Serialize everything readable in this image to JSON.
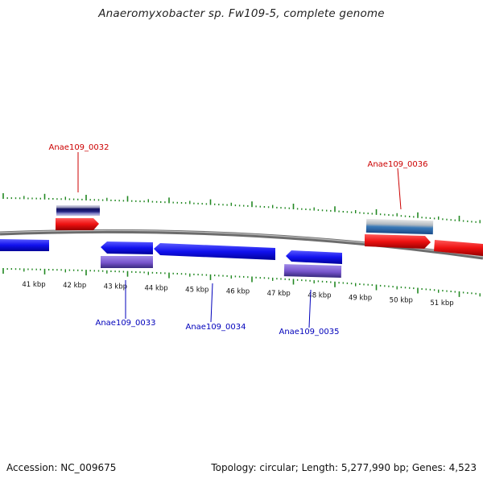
{
  "title": "Anaeromyxobacter sp. Fw109-5, complete genome",
  "footer": {
    "accession": "Accession: NC_009675",
    "summary": "Topology: circular; Length: 5,277,990 bp; Genes: 4,523"
  },
  "colors": {
    "forward_gene": "#ee1111",
    "reverse_gene": "#1111ee",
    "reverse_product": "#7755cc",
    "label_forward": "#cc0000",
    "label_reverse": "#0000bb",
    "tick": "#228822",
    "backbone": "#808080"
  },
  "scale_labels": [
    "41 kbp",
    "42 kbp",
    "43 kbp",
    "44 kbp",
    "45 kbp",
    "46 kbp",
    "47 kbp",
    "48 kbp",
    "49 kbp",
    "50 kbp",
    "51 kbp"
  ],
  "gene_labels": [
    {
      "id": "Anae109_0032",
      "strand": "forward"
    },
    {
      "id": "Anae109_0036",
      "strand": "forward"
    },
    {
      "id": "Anae109_0033",
      "strand": "reverse"
    },
    {
      "id": "Anae109_0034",
      "strand": "reverse"
    },
    {
      "id": "Anae109_0035",
      "strand": "reverse"
    }
  ]
}
